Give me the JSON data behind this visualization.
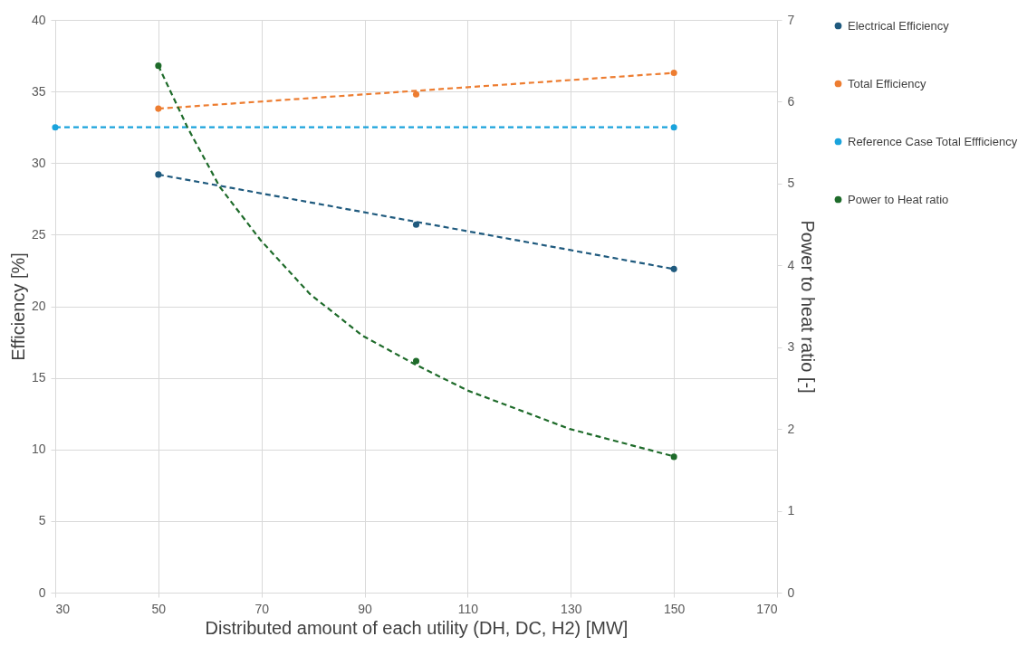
{
  "chart_data": {
    "type": "scatter",
    "xlabel": "Distributed amount of each utility (DH, DC, H2) [MW]",
    "ylabel": "Efficiency [%]",
    "y2label": "Power to heat ratio [-]",
    "xlim": [
      30,
      170
    ],
    "xticks": [
      30,
      50,
      70,
      90,
      110,
      130,
      150,
      170
    ],
    "ylim": [
      0,
      40
    ],
    "yticks": [
      0,
      5,
      10,
      15,
      20,
      25,
      30,
      35,
      40
    ],
    "y2lim": [
      0,
      7
    ],
    "y2ticks": [
      0,
      1,
      2,
      3,
      4,
      5,
      6,
      7
    ],
    "grid": true,
    "legend": "right",
    "series": [
      {
        "name": "Electrical Efficiency",
        "marker": "circle",
        "color": "#1f5a7e",
        "x": [
          50,
          100,
          150
        ],
        "values": [
          29.2,
          25.7,
          22.6
        ]
      },
      {
        "name": "Total Efficiency",
        "marker": "circle",
        "color": "#ed7d31",
        "x": [
          50,
          100,
          150
        ],
        "values": [
          33.8,
          34.8,
          36.3
        ]
      },
      {
        "name": "Reference Case Total Effficiency",
        "marker": "circle",
        "color": "#1aa3dc",
        "x": [
          30,
          150
        ],
        "values": [
          32.5,
          32.5
        ]
      },
      {
        "name": "Power to Heat ratio",
        "marker": "circle",
        "color": "#1e6b2a",
        "axis": "y2",
        "x": [
          50,
          100,
          150
        ],
        "values": [
          6.44,
          2.83,
          1.66
        ]
      },
      {
        "type": "line",
        "line_style": "dashed",
        "marker": "none",
        "color": "#1f5a7e",
        "x": [
          50,
          150
        ],
        "values": [
          29.2,
          22.6
        ]
      },
      {
        "type": "line",
        "line_style": "dashed",
        "marker": "none",
        "color": "#ed7d31",
        "x": [
          50,
          150
        ],
        "values": [
          33.8,
          36.3
        ]
      },
      {
        "type": "line",
        "line_style": "dashed",
        "marker": "none",
        "color": "#1aa3dc",
        "x": [
          30,
          150
        ],
        "values": [
          32.5,
          32.5
        ]
      },
      {
        "type": "line",
        "line_style": "dashed",
        "marker": "none",
        "color": "#1e6b2a",
        "axis": "y2",
        "x": [
          50,
          55.7,
          61.9,
          69.8,
          79.4,
          89.6,
          99.8,
          110,
          129.8,
          149.7
        ],
        "values": [
          6.44,
          5.68,
          4.96,
          4.31,
          3.65,
          3.14,
          2.79,
          2.47,
          2.0,
          1.67
        ]
      }
    ]
  }
}
